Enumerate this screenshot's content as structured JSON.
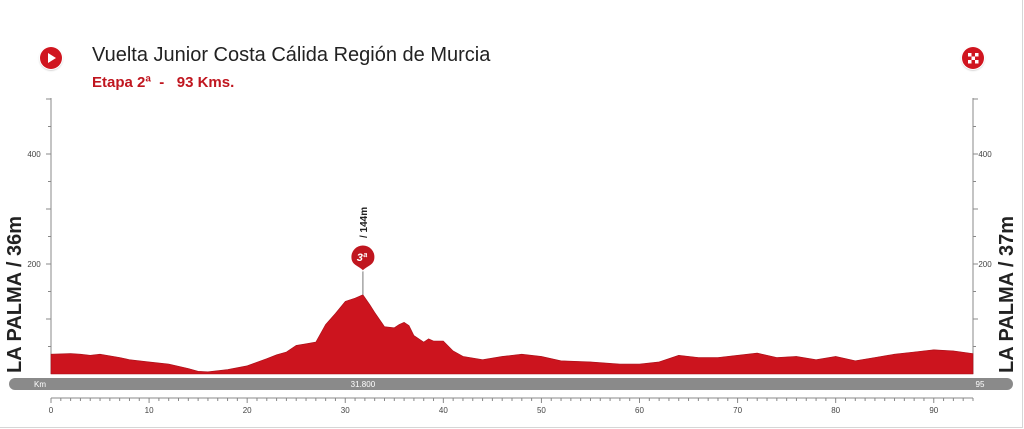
{
  "header": {
    "title": "Vuelta Junior Costa Cálida Región de Murcia",
    "subtitle": "Etapa 2ª  -   93 Kms."
  },
  "start": {
    "label": "LA PALMA / 36m"
  },
  "finish": {
    "label": "LA PALMA / 37m"
  },
  "icons": {
    "start": "start-play-icon",
    "finish": "finish-checkered-flag-icon"
  },
  "colors": {
    "profile": "#cc141e",
    "accent": "#c0161f",
    "km_bar": "#8a8a8a"
  },
  "chart_data": {
    "type": "area",
    "title": "Vuelta Junior Costa Cálida Región de Murcia",
    "subtitle": "Etapa 2ª  -   93 Kms.",
    "xlabel": "Km",
    "ylabel": "",
    "xlim": [
      0,
      94
    ],
    "ylim": [
      0,
      500
    ],
    "x_ticks": [
      0,
      10,
      20,
      30,
      40,
      50,
      60,
      70,
      80,
      90
    ],
    "y_ticks": [
      200,
      400
    ],
    "grid": false,
    "series": [
      {
        "x": [
          0,
          2,
          3,
          4,
          5,
          7,
          8,
          10,
          12,
          14,
          15,
          16,
          18,
          20,
          22,
          23,
          24,
          25,
          26,
          27,
          28,
          29,
          30,
          31,
          31.8,
          32.5,
          33,
          34,
          35,
          35.5,
          36,
          36.5,
          37,
          38,
          38.5,
          39,
          40,
          41,
          42,
          44,
          46,
          48,
          50,
          52,
          55,
          58,
          60,
          62,
          64,
          66,
          68,
          70,
          72,
          74,
          76,
          78,
          80,
          82,
          84,
          86,
          88,
          90,
          92,
          94
        ],
        "y": [
          36,
          37,
          36,
          34,
          36,
          30,
          26,
          22,
          18,
          10,
          5,
          4,
          8,
          15,
          28,
          35,
          40,
          52,
          55,
          58,
          90,
          110,
          132,
          138,
          144,
          126,
          112,
          86,
          84,
          90,
          94,
          88,
          70,
          58,
          64,
          60,
          60,
          42,
          32,
          26,
          32,
          36,
          32,
          24,
          22,
          18,
          18,
          22,
          34,
          30,
          30,
          34,
          38,
          30,
          32,
          26,
          32,
          24,
          30,
          36,
          40,
          44,
          42,
          37
        ]
      }
    ],
    "start_label": "LA PALMA / 36m",
    "finish_label": "LA PALMA / 37m",
    "km_bar": {
      "left": "Km",
      "middle": "31.800",
      "right": "95"
    },
    "annotations": [
      {
        "x": 31.8,
        "y": 144,
        "text": "/ 144m",
        "badge": "3ª"
      }
    ]
  }
}
